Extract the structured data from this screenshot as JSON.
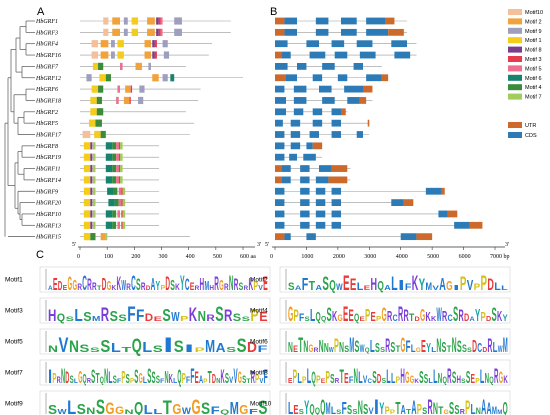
{
  "figure": {
    "panel_labels": [
      "A",
      "B",
      "C"
    ],
    "genes": [
      "HbGRF1",
      "HbGRF3",
      "HbGRF4",
      "HbGRF16",
      "HbGRF7",
      "HbGRF12",
      "HbGRF6",
      "HbGRF18",
      "HbGRF2",
      "HbGRF5",
      "HbGRF17",
      "HbGRF8",
      "HbGRF19",
      "HbGRF11",
      "HbGRF14",
      "HbGRF9",
      "HbGRF20",
      "HbGRF10",
      "HbGRF13",
      "HbGRF15"
    ],
    "axis_a": {
      "ticks": [
        "0",
        "100",
        "200",
        "300",
        "400",
        "500",
        "600 aa"
      ],
      "left_end": "5'",
      "right_end": "3'"
    },
    "axis_b": {
      "ticks": [
        "0",
        "1000",
        "2000",
        "3000",
        "4000",
        "5000",
        "6000",
        "7000 bp"
      ],
      "left_end": "5'",
      "right_end": "3'"
    },
    "motif_legend": [
      {
        "label": "Motif10",
        "color": "#f4c09c"
      },
      {
        "label": "Motif 2",
        "color": "#f2a23a"
      },
      {
        "label": "Motif 9",
        "color": "#9e9ebf"
      },
      {
        "label": "Motif 1",
        "color": "#f4cc1c"
      },
      {
        "label": "Motif 8",
        "color": "#7a3d8a"
      },
      {
        "label": "Motif 3",
        "color": "#e83a4c"
      },
      {
        "label": "Motif 5",
        "color": "#ee6f8f"
      },
      {
        "label": "Motif 6",
        "color": "#17826e"
      },
      {
        "label": "Motif 4",
        "color": "#3a8c3a"
      },
      {
        "label": "Motif 7",
        "color": "#a4cc5c"
      }
    ],
    "structure_legend": [
      {
        "label": "UTR",
        "color": "#cd6a2b"
      },
      {
        "label": "CDS",
        "color": "#2c7bb6"
      }
    ],
    "logos": [
      {
        "name": "Motif1",
        "seq": "AEDEGGRCRRTDGKKWRCSRDAYPDSKYCERHMHRGRNRSRKPVE"
      },
      {
        "name": "Motif2",
        "seq": "SAFTASQWEELEHQALIFKYMVAGIPVPPDLL"
      },
      {
        "name": "Motif3",
        "seq": "HQSLSMRSSFFDESWPKNRSRSSPE"
      },
      {
        "name": "Motif4",
        "seq": "GPFSLQQSKGEEQEPEPGRCRRTDGKKWRCSRDAYPDSKY"
      },
      {
        "name": "Motif5",
        "seq": "NVNSSSLTQLSISIPMASSDF"
      },
      {
        "name": "Motif6",
        "seq": "NETNGRNNWPNSMSWQLSSRSTGFLGEYLNSTNSSSDCDRLWM"
      },
      {
        "name": "Motif7",
        "seq": "IPRNDSLGQRSTQNLSFPSPSGLSSSFNKLQPFFEAPTDNKSVVGSTRPVF"
      },
      {
        "name": "Motif8",
        "seq": "EPLPLQPEPSRTEFNLVCSDSLLPHGGKSSLLNQRSHSSEPLNQRGK"
      },
      {
        "name": "Motif9",
        "seq": "SWLSNSGGNQLLTGWGSFQMGFS"
      },
      {
        "name": "Motif10",
        "seq": "LESYQQQMLSFSSNSVIYPPTATAPSRNTGSSRPLNAAMMQ"
      }
    ]
  }
}
